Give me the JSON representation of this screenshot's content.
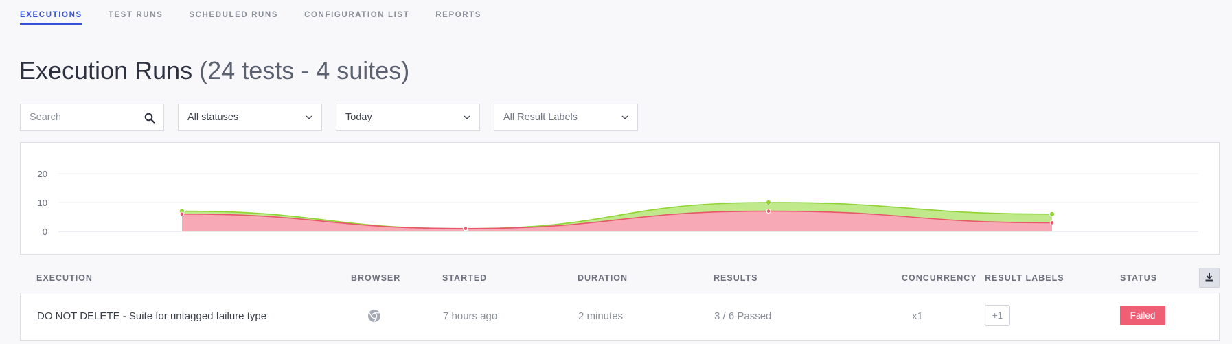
{
  "tabs": [
    "EXECUTIONS",
    "TEST RUNS",
    "SCHEDULED RUNS",
    "CONFIGURATION LIST",
    "REPORTS"
  ],
  "page": {
    "title": "Execution Runs",
    "subtitle": "(24 tests - 4 suites)"
  },
  "filters": {
    "search_placeholder": "Search",
    "status": "All statuses",
    "date": "Today",
    "labels": "All Result Labels"
  },
  "chart_data": {
    "type": "area",
    "y_ticks": [
      "20",
      "10",
      "0"
    ],
    "ylim": [
      0,
      20
    ],
    "points": 4,
    "series": [
      {
        "color": "#a6e22e",
        "values": [
          7,
          1,
          10,
          6
        ]
      },
      {
        "color": "#f3a6b2",
        "values": [
          6,
          1,
          7,
          3
        ]
      }
    ]
  },
  "table": {
    "headers": {
      "execution": "EXECUTION",
      "browser": "BROWSER",
      "started": "STARTED",
      "duration": "DURATION",
      "results": "RESULTS",
      "concurrency": "CONCURRENCY",
      "labels": "RESULT LABELS",
      "status": "STATUS"
    },
    "rows": [
      {
        "name": "DO NOT DELETE - Suite for untagged failure type",
        "browser_icon": "chrome-icon",
        "started": "7 hours ago",
        "duration": "2 minutes",
        "results": "3 / 6 Passed",
        "concurrency": "x1",
        "labels": "+1",
        "status": "Failed"
      }
    ]
  },
  "colors": {
    "accent": "#3552d9",
    "failed": "#ee5e75",
    "pass_area": "#bfe98b",
    "fail_area": "#f7aab5"
  }
}
